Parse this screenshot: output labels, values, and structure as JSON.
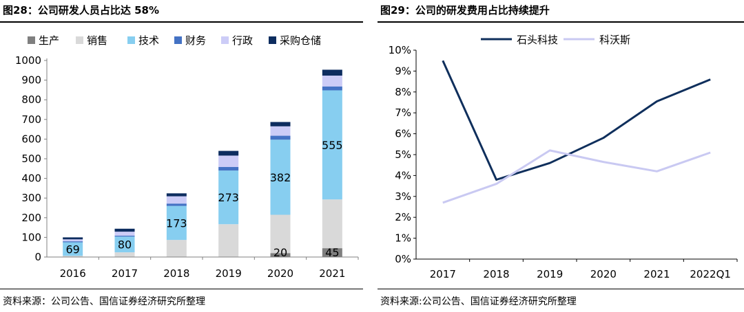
{
  "left": {
    "title": "图28：公司研发人员占比达 58%",
    "source": "资料来源：公司公告、国信证券经济研究所整理",
    "chart_data": {
      "type": "bar",
      "stacked": true,
      "categories": [
        "2016",
        "2017",
        "2018",
        "2019",
        "2020",
        "2021"
      ],
      "series": [
        {
          "name": "生产",
          "color": "#7f7f7f",
          "values": [
            2,
            2,
            2,
            2,
            20,
            45
          ]
        },
        {
          "name": "销售",
          "color": "#d9d9d9",
          "values": [
            4,
            22,
            85,
            165,
            195,
            248
          ]
        },
        {
          "name": "技术",
          "color": "#87cef0",
          "values": [
            69,
            80,
            173,
            273,
            382,
            555
          ]
        },
        {
          "name": "财务",
          "color": "#4472c4",
          "values": [
            5,
            5,
            12,
            18,
            20,
            20
          ]
        },
        {
          "name": "行政",
          "color": "#ccccf7",
          "values": [
            10,
            20,
            37,
            58,
            48,
            55
          ]
        },
        {
          "name": "采购仓储",
          "color": "#0d2d5f",
          "values": [
            10,
            15,
            15,
            24,
            22,
            30
          ]
        }
      ],
      "labels": [
        {
          "category": "2016",
          "series": "技术",
          "text": "69"
        },
        {
          "category": "2017",
          "series": "技术",
          "text": "80"
        },
        {
          "category": "2018",
          "series": "技术",
          "text": "173"
        },
        {
          "category": "2019",
          "series": "技术",
          "text": "273"
        },
        {
          "category": "2020",
          "series": "技术",
          "text": "382"
        },
        {
          "category": "2021",
          "series": "技术",
          "text": "555"
        },
        {
          "category": "2020",
          "series": "生产",
          "text": "20"
        },
        {
          "category": "2021",
          "series": "生产",
          "text": "45"
        }
      ],
      "ylim": [
        0,
        1000
      ],
      "yticks": [
        "0",
        "100",
        "200",
        "300",
        "400",
        "500",
        "600",
        "700",
        "800",
        "900",
        "1000"
      ],
      "legend_position": "top"
    }
  },
  "right": {
    "title": "图29：公司的研发费用占比持续提升",
    "source": "资料来源:公司公告、国信证券经济研究所整理",
    "chart_data": {
      "type": "line",
      "categories": [
        "2017",
        "2018",
        "2019",
        "2020",
        "2021",
        "2022Q1"
      ],
      "series": [
        {
          "name": "石头科技",
          "color": "#0f2f5c",
          "values": [
            9.5,
            3.8,
            4.6,
            5.8,
            7.55,
            8.6
          ]
        },
        {
          "name": "科沃斯",
          "color": "#c9c9f2",
          "values": [
            2.7,
            3.6,
            5.2,
            4.65,
            4.2,
            5.1
          ]
        }
      ],
      "ylim": [
        0,
        10
      ],
      "yticks": [
        "0%",
        "1%",
        "2%",
        "3%",
        "4%",
        "5%",
        "6%",
        "7%",
        "8%",
        "9%",
        "10%"
      ],
      "legend_position": "top"
    }
  }
}
